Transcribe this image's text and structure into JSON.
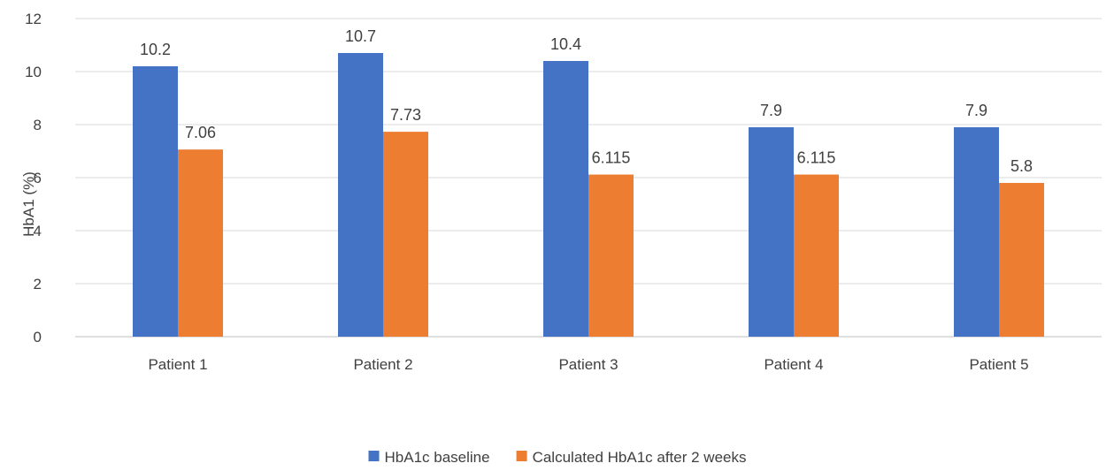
{
  "chart_data": {
    "type": "bar",
    "title": "",
    "xlabel": "",
    "ylabel": "HbA1  (%)",
    "ylim": [
      0,
      12
    ],
    "yticks": [
      0,
      2,
      4,
      6,
      8,
      10,
      12
    ],
    "grid": true,
    "legend_position": "bottom",
    "categories": [
      "Patient 1",
      "Patient 2",
      "Patient 3",
      "Patient 4",
      "Patient 5"
    ],
    "series": [
      {
        "name": "HbA1c baseline",
        "color": "#4472c4",
        "values": [
          10.2,
          10.7,
          10.4,
          7.9,
          7.9
        ],
        "labels": [
          "10.2",
          "10.7",
          "10.4",
          "7.9",
          "7.9"
        ]
      },
      {
        "name": "Calculated HbA1c after 2 weeks",
        "color": "#ed7d31",
        "values": [
          7.06,
          7.73,
          6.115,
          6.115,
          5.8
        ],
        "labels": [
          "7.06",
          "7.73",
          "6.115",
          "6.115",
          "5.8"
        ]
      }
    ]
  }
}
